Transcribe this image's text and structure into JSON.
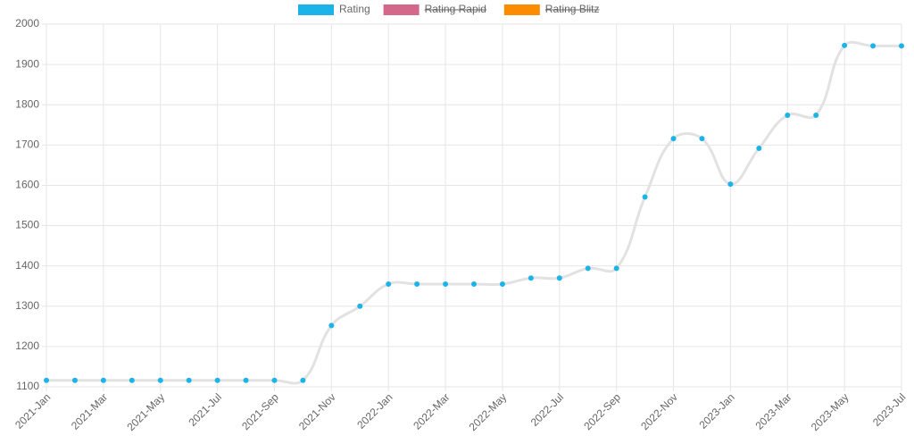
{
  "chart_data": {
    "type": "line",
    "categories": [
      "2021-Jan",
      null,
      "2021-Mar",
      null,
      "2021-May",
      null,
      "2021-Jul",
      null,
      "2021-Sep",
      null,
      "2021-Nov",
      null,
      "2022-Jan",
      null,
      "2022-Mar",
      null,
      "2022-May",
      null,
      "2022-Jul",
      null,
      "2022-Sep",
      null,
      "2022-Nov",
      null,
      "2023-Jan",
      null,
      "2023-Mar",
      null,
      "2023-May",
      null,
      "2023-Jul"
    ],
    "series": [
      {
        "name": "Rating",
        "color": "#1cb4e8",
        "line_color": "#e2e2e2",
        "hidden": false,
        "values": [
          1116,
          1116,
          1116,
          1116,
          1116,
          1116,
          1116,
          1116,
          1116,
          1116,
          1252,
          1300,
          1355,
          1355,
          1355,
          1355,
          1355,
          1370,
          1370,
          1394,
          1394,
          1571,
          1716,
          1716,
          1603,
          1692,
          1774,
          1774,
          1947,
          1946,
          1946
        ]
      },
      {
        "name": "Rating Rapid",
        "color": "#d4688a",
        "hidden": true,
        "values": [
          null,
          null,
          null,
          null,
          null,
          null,
          null,
          null,
          null,
          null,
          null,
          null,
          null,
          null,
          null,
          null,
          null,
          null,
          null,
          null,
          null,
          null,
          null,
          null,
          null,
          null,
          null,
          null,
          null,
          null,
          null
        ]
      },
      {
        "name": "Rating Blitz",
        "color": "#fb8c00",
        "hidden": true,
        "values": [
          null,
          null,
          null,
          null,
          null,
          null,
          null,
          null,
          null,
          null,
          null,
          null,
          null,
          null,
          null,
          null,
          null,
          null,
          null,
          null,
          null,
          null,
          null,
          null,
          null,
          null,
          null,
          null,
          null,
          null,
          null
        ]
      }
    ],
    "ylim": [
      1100,
      2000
    ],
    "yticks": [
      1100,
      1200,
      1300,
      1400,
      1500,
      1600,
      1700,
      1800,
      1900,
      2000
    ],
    "grid": true,
    "legend": "top"
  }
}
